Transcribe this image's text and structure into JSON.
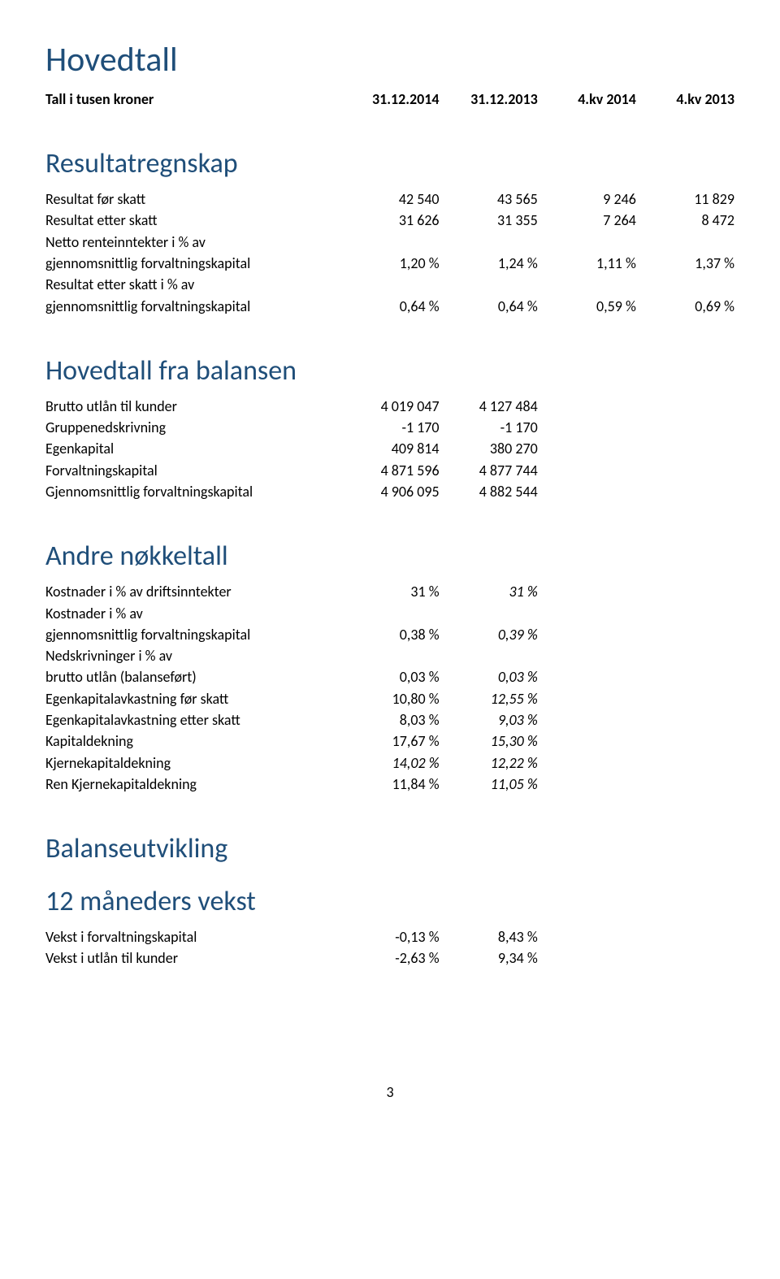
{
  "title": "Hovedtall",
  "subtitle": "Tall i tusen kroner",
  "col_headers": [
    "31.12.2014",
    "31.12.2013",
    "4.kv 2014",
    "4.kv 2013"
  ],
  "sections": {
    "resultat": {
      "heading": "Resultatregnskap",
      "rows": [
        {
          "label": "Resultat før skatt",
          "v": [
            "42 540",
            "43 565",
            "9 246",
            "11 829"
          ]
        },
        {
          "label": "Resultat etter skatt",
          "v": [
            "31 626",
            "31 355",
            "7 264",
            "8 472"
          ]
        },
        {
          "label": "Netto renteinntekter i % av\ngjennomsnittlig forvaltningskapital",
          "v": [
            "1,20 %",
            "1,24 %",
            "1,11 %",
            "1,37 %"
          ]
        },
        {
          "label": "Resultat etter skatt i % av\ngjennomsnittlig forvaltningskapital",
          "v": [
            "0,64 %",
            "0,64 %",
            "0,59 %",
            "0,69 %"
          ]
        }
      ]
    },
    "balansen": {
      "heading": "Hovedtall fra balansen",
      "rows": [
        {
          "label": "Brutto utlån til kunder",
          "v": [
            "4 019 047",
            "4 127 484"
          ]
        },
        {
          "label": "Gruppenedskrivning",
          "v": [
            "-1 170",
            "-1 170"
          ]
        },
        {
          "label": "Egenkapital",
          "v": [
            "409 814",
            "380 270"
          ]
        },
        {
          "label": "Forvaltningskapital",
          "v": [
            "4 871 596",
            "4 877 744"
          ]
        },
        {
          "label": "Gjennomsnittlig forvaltningskapital",
          "v": [
            "4 906 095",
            "4 882 544"
          ]
        }
      ]
    },
    "nokkel": {
      "heading": "Andre nøkkeltall",
      "rows": [
        {
          "label": "Kostnader i % av driftsinntekter",
          "v": [
            "31 %",
            "31 %"
          ],
          "italic": [
            false,
            true
          ]
        },
        {
          "label": "Kostnader i % av\ngjennomsnittlig forvaltningskapital",
          "v": [
            "0,38 %",
            "0,39 %"
          ],
          "italic": [
            false,
            true
          ]
        },
        {
          "label": "Nedskrivninger i % av\nbrutto utlån (balanseført)",
          "v": [
            "0,03 %",
            "0,03 %"
          ],
          "italic": [
            false,
            true
          ]
        },
        {
          "label": "Egenkapitalavkastning før skatt",
          "v": [
            "10,80 %",
            "12,55 %"
          ],
          "italic": [
            false,
            true
          ]
        },
        {
          "label": "Egenkapitalavkastning etter skatt",
          "v": [
            "8,03 %",
            "9,03 %"
          ],
          "italic": [
            false,
            true
          ]
        },
        {
          "label": "Kapitaldekning",
          "v": [
            "17,67 %",
            "15,30 %"
          ],
          "italic": [
            false,
            true
          ]
        },
        {
          "label": "Kjernekapitaldekning",
          "v": [
            "14,02 %",
            "12,22 %"
          ],
          "italic": [
            true,
            true
          ]
        },
        {
          "label": "Ren Kjernekapitaldekning",
          "v": [
            "11,84 %",
            "11,05 %"
          ],
          "italic": [
            false,
            true
          ]
        }
      ]
    },
    "balanseutvikling": {
      "heading": "Balanseutvikling",
      "heading2": "12 måneders vekst",
      "rows": [
        {
          "label": "Vekst i forvaltningskapital",
          "v": [
            "-0,13 %",
            "8,43 %"
          ]
        },
        {
          "label": "Vekst i utlån til kunder",
          "v": [
            "-2,63 %",
            "9,34 %"
          ]
        }
      ]
    }
  },
  "page_number": "3",
  "colors": {
    "heading": "#1f4e79",
    "text": "#000000",
    "background": "#ffffff"
  },
  "fonts": {
    "body_size_pt": 13,
    "h1_size_pt": 30,
    "h2_size_pt": 24
  }
}
